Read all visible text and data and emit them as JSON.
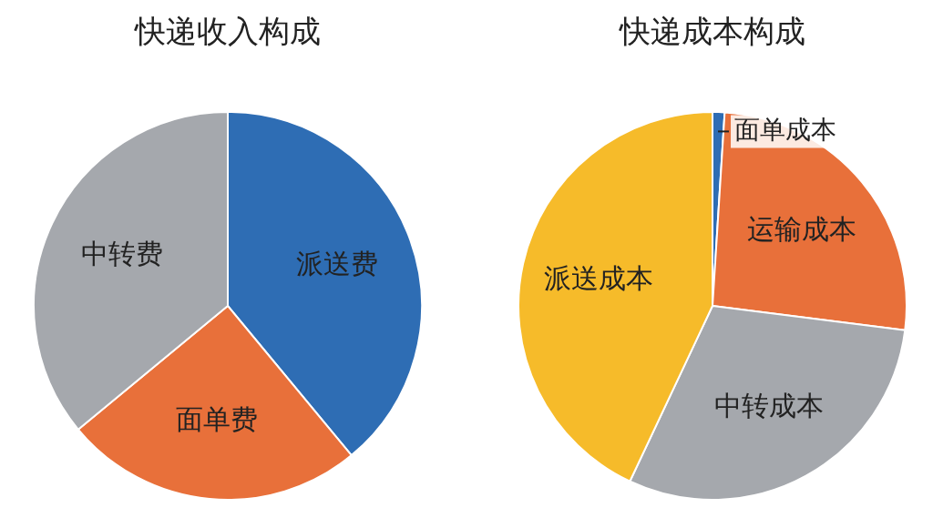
{
  "chart_data": [
    {
      "type": "pie",
      "title": "快递收入构成",
      "categories": [
        "派送费",
        "面单费",
        "中转费"
      ],
      "values": [
        39,
        25,
        36
      ],
      "colors": [
        "#2e6db4",
        "#e8703a",
        "#a5a8ad"
      ]
    },
    {
      "type": "pie",
      "title": "快递成本构成",
      "categories": [
        "面单成本",
        "运输成本",
        "中转成本",
        "派送成本"
      ],
      "values": [
        1,
        26,
        30,
        43
      ],
      "colors": [
        "#2e6db4",
        "#e8703a",
        "#a5a8ad",
        "#f6bb2a"
      ]
    }
  ]
}
